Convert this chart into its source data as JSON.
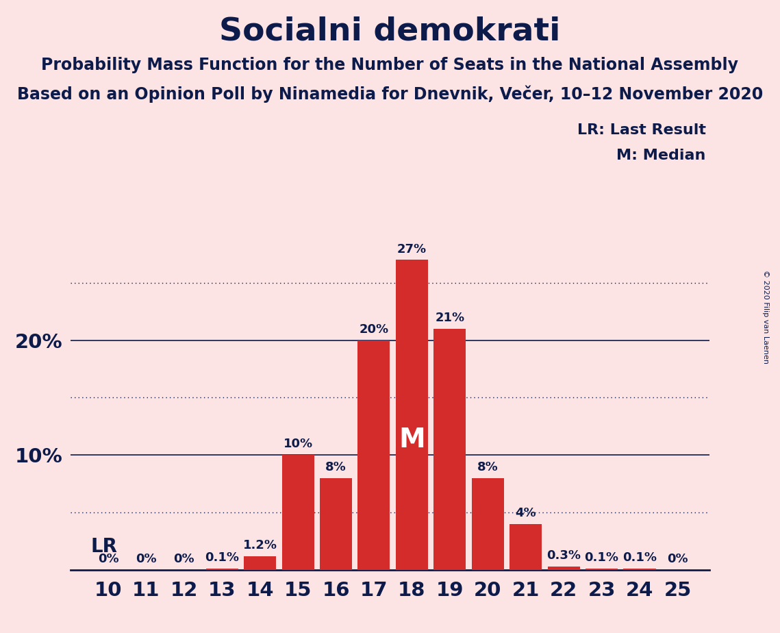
{
  "title": "Socialni demokrati",
  "subtitle1": "Probability Mass Function for the Number of Seats in the National Assembly",
  "subtitle2": "Based on an Opinion Poll by Ninamedia for Dnevnik, Večer, 10–12 November 2020",
  "copyright": "© 2020 Filip van Laenen",
  "legend_lr": "LR: Last Result",
  "legend_m": "M: Median",
  "seats": [
    10,
    11,
    12,
    13,
    14,
    15,
    16,
    17,
    18,
    19,
    20,
    21,
    22,
    23,
    24,
    25
  ],
  "probabilities": [
    0.0,
    0.0,
    0.0,
    0.1,
    1.2,
    10.0,
    8.0,
    20.0,
    27.0,
    21.0,
    8.0,
    4.0,
    0.3,
    0.1,
    0.1,
    0.0
  ],
  "bar_color": "#d42b2b",
  "bg_color": "#fce4e4",
  "text_color": "#0d1b4b",
  "median_seat": 18,
  "lr_seat": 10,
  "dotted_lines": [
    5,
    15,
    25
  ],
  "solid_lines": [
    10,
    20
  ],
  "ylim": [
    0,
    32
  ],
  "label_fontsize": 13,
  "tick_fontsize": 21,
  "title_fontsize": 34,
  "subtitle_fontsize": 17,
  "legend_fontsize": 16,
  "lr_fontsize": 20,
  "m_fontsize": 28
}
